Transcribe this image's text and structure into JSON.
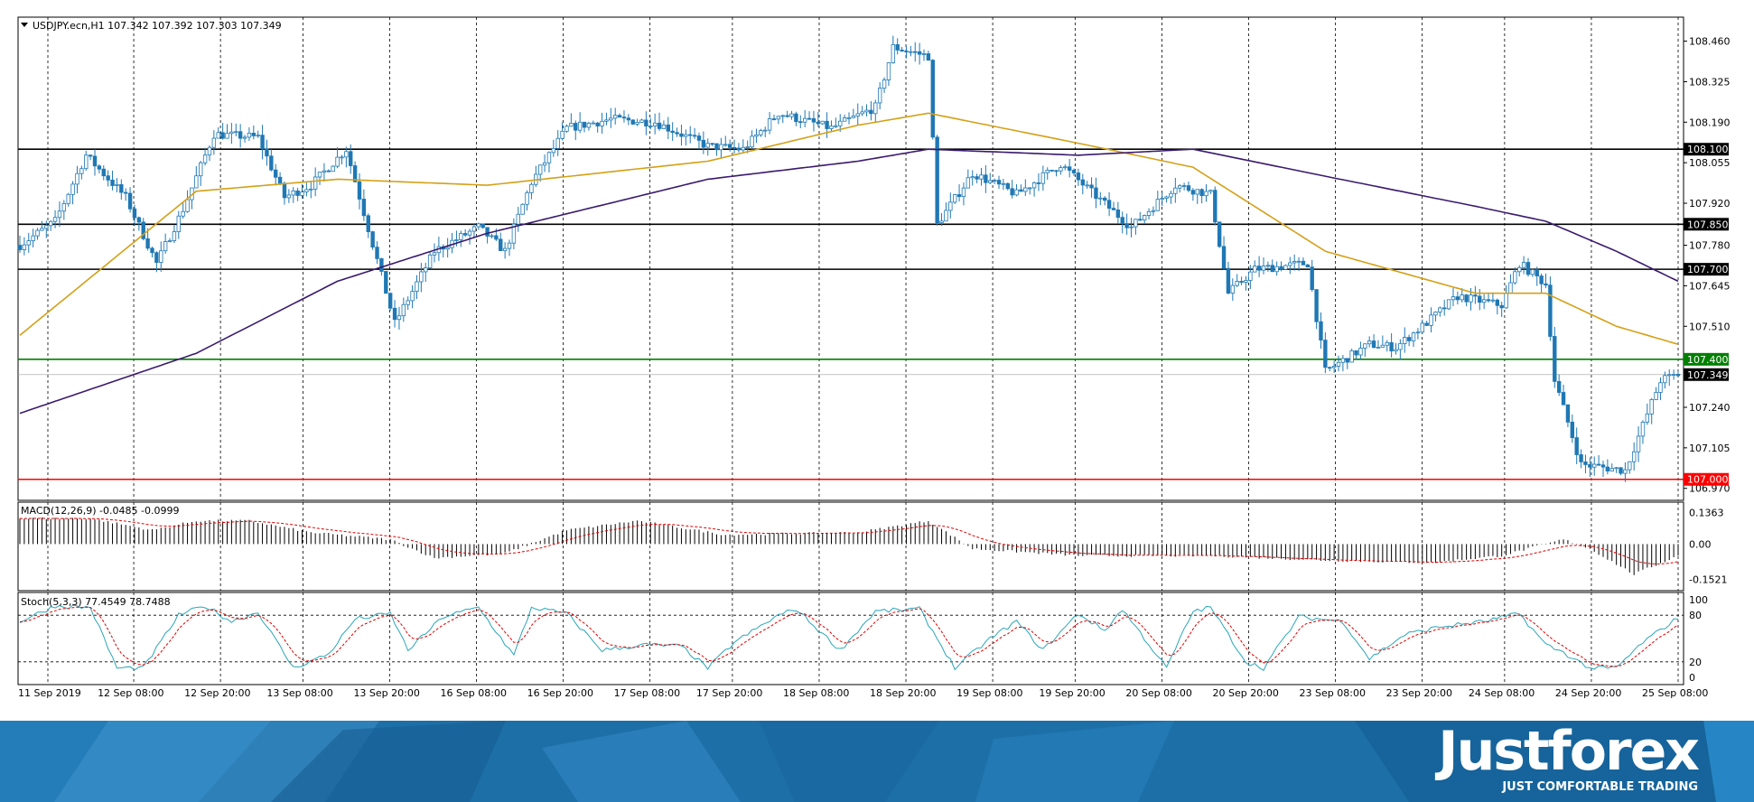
{
  "header": {
    "menu_icon": "triangle-down-icon",
    "text": "USDJPY.ecn,H1  107.342 107.392 107.303 107.349"
  },
  "chart_data": {
    "type": "candlestick",
    "symbol": "USDJPY.ecn",
    "timeframe": "H1",
    "ohlc": {
      "open": 107.342,
      "high": 107.392,
      "low": 107.303,
      "close": 107.349
    },
    "price_axis": {
      "ylim": [
        106.93,
        108.54
      ],
      "ticks": [
        "108.460",
        "108.325",
        "108.190",
        "108.055",
        "107.920",
        "107.780",
        "107.645",
        "107.510",
        "107.240",
        "107.105",
        "106.970"
      ]
    },
    "horizontal_levels": [
      {
        "value": 108.1,
        "label": "108.100",
        "color": "#000000"
      },
      {
        "value": 107.85,
        "label": "107.850",
        "color": "#000000"
      },
      {
        "value": 107.7,
        "label": "107.700",
        "color": "#000000"
      },
      {
        "value": 107.4,
        "label": "107.400",
        "color": "#008000"
      },
      {
        "value": 107.0,
        "label": "107.000",
        "color": "#ff0000"
      }
    ],
    "current_price": {
      "value": 107.349,
      "label": "107.349"
    },
    "x_labels": [
      "11 Sep 2019",
      "12 Sep 08:00",
      "12 Sep 20:00",
      "13 Sep 08:00",
      "13 Sep 20:00",
      "16 Sep 08:00",
      "16 Sep 20:00",
      "17 Sep 08:00",
      "17 Sep 20:00",
      "18 Sep 08:00",
      "18 Sep 20:00",
      "19 Sep 08:00",
      "19 Sep 20:00",
      "20 Sep 08:00",
      "20 Sep 20:00",
      "23 Sep 08:00",
      "23 Sep 20:00",
      "24 Sep 08:00",
      "24 Sep 20:00",
      "25 Sep 08:00"
    ],
    "anchors": [
      [
        0,
        107.78
      ],
      [
        8,
        107.86
      ],
      [
        15,
        108.08
      ],
      [
        24,
        107.94
      ],
      [
        31,
        107.72
      ],
      [
        37,
        107.9
      ],
      [
        44,
        108.15
      ],
      [
        54,
        108.14
      ],
      [
        60,
        107.94
      ],
      [
        66,
        107.98
      ],
      [
        74,
        108.1
      ],
      [
        85,
        107.52
      ],
      [
        94,
        107.76
      ],
      [
        104,
        107.84
      ],
      [
        110,
        107.76
      ],
      [
        116,
        107.99
      ],
      [
        124,
        108.17
      ],
      [
        134,
        108.2
      ],
      [
        144,
        108.19
      ],
      [
        156,
        108.11
      ],
      [
        164,
        108.1
      ],
      [
        172,
        108.22
      ],
      [
        184,
        108.17
      ],
      [
        194,
        108.24
      ],
      [
        198,
        108.44
      ],
      [
        206,
        108.41
      ],
      [
        208,
        107.85
      ],
      [
        216,
        108.02
      ],
      [
        226,
        107.95
      ],
      [
        236,
        108.05
      ],
      [
        242,
        107.97
      ],
      [
        252,
        107.84
      ],
      [
        262,
        107.98
      ],
      [
        270,
        107.95
      ],
      [
        274,
        107.62
      ],
      [
        280,
        107.7
      ],
      [
        292,
        107.72
      ],
      [
        296,
        107.36
      ],
      [
        306,
        107.45
      ],
      [
        312,
        107.44
      ],
      [
        318,
        107.51
      ],
      [
        326,
        107.61
      ],
      [
        336,
        107.58
      ],
      [
        340,
        107.72
      ],
      [
        346,
        107.65
      ],
      [
        348,
        107.33
      ],
      [
        354,
        107.05
      ],
      [
        364,
        107.03
      ],
      [
        372,
        107.33
      ],
      [
        376,
        107.35
      ]
    ],
    "ma_fast": [
      [
        0,
        107.48
      ],
      [
        40,
        107.96
      ],
      [
        72,
        108.0
      ],
      [
        106,
        107.98
      ],
      [
        156,
        108.06
      ],
      [
        190,
        108.18
      ],
      [
        206,
        108.22
      ],
      [
        240,
        108.12
      ],
      [
        266,
        108.04
      ],
      [
        296,
        107.76
      ],
      [
        330,
        107.62
      ],
      [
        346,
        107.62
      ],
      [
        362,
        107.51
      ],
      [
        376,
        107.45
      ]
    ],
    "ma_slow": [
      [
        0,
        107.22
      ],
      [
        40,
        107.42
      ],
      [
        72,
        107.66
      ],
      [
        106,
        107.82
      ],
      [
        156,
        108.0
      ],
      [
        190,
        108.06
      ],
      [
        206,
        108.1
      ],
      [
        240,
        108.08
      ],
      [
        266,
        108.1
      ],
      [
        296,
        108.01
      ],
      [
        330,
        107.91
      ],
      [
        346,
        107.86
      ],
      [
        362,
        107.76
      ],
      [
        376,
        107.66
      ]
    ],
    "colors": {
      "bull": "#1f78b4",
      "bear": "#1f78b4",
      "ma_fast": "#d4a017",
      "ma_slow": "#3a1a6e"
    },
    "macd": {
      "label": "MACD(12,26,9) -0.0485 -0.0999",
      "ticks": [
        "0.1363",
        "0.00",
        "-0.1521"
      ],
      "anchors": [
        [
          0,
          0.11
        ],
        [
          16,
          0.11
        ],
        [
          30,
          0.06
        ],
        [
          40,
          0.1
        ],
        [
          52,
          0.1
        ],
        [
          66,
          0.05
        ],
        [
          84,
          0.02
        ],
        [
          94,
          -0.06
        ],
        [
          110,
          -0.04
        ],
        [
          124,
          0.06
        ],
        [
          140,
          0.1
        ],
        [
          160,
          0.04
        ],
        [
          190,
          0.05
        ],
        [
          206,
          0.1
        ],
        [
          216,
          -0.02
        ],
        [
          240,
          -0.05
        ],
        [
          270,
          -0.05
        ],
        [
          296,
          -0.07
        ],
        [
          320,
          -0.08
        ],
        [
          336,
          -0.05
        ],
        [
          350,
          0.02
        ],
        [
          356,
          -0.02
        ],
        [
          366,
          -0.13
        ],
        [
          376,
          -0.05
        ]
      ]
    },
    "stoch": {
      "label": "Stoch(5,3,3) 77.4549 78.7488",
      "ticks": [
        "100",
        "80",
        "20",
        "0"
      ],
      "anchors": [
        [
          0,
          72
        ],
        [
          8,
          92
        ],
        [
          16,
          90
        ],
        [
          22,
          12
        ],
        [
          28,
          12
        ],
        [
          36,
          80
        ],
        [
          42,
          92
        ],
        [
          48,
          72
        ],
        [
          54,
          84
        ],
        [
          62,
          12
        ],
        [
          70,
          30
        ],
        [
          76,
          75
        ],
        [
          84,
          82
        ],
        [
          88,
          35
        ],
        [
          96,
          78
        ],
        [
          104,
          90
        ],
        [
          112,
          28
        ],
        [
          116,
          90
        ],
        [
          124,
          82
        ],
        [
          132,
          35
        ],
        [
          142,
          42
        ],
        [
          150,
          40
        ],
        [
          156,
          12
        ],
        [
          162,
          45
        ],
        [
          172,
          80
        ],
        [
          176,
          88
        ],
        [
          186,
          35
        ],
        [
          194,
          85
        ],
        [
          204,
          88
        ],
        [
          212,
          12
        ],
        [
          220,
          50
        ],
        [
          226,
          72
        ],
        [
          232,
          35
        ],
        [
          240,
          82
        ],
        [
          246,
          60
        ],
        [
          250,
          88
        ],
        [
          260,
          12
        ],
        [
          266,
          85
        ],
        [
          270,
          90
        ],
        [
          278,
          20
        ],
        [
          282,
          12
        ],
        [
          290,
          78
        ],
        [
          300,
          72
        ],
        [
          306,
          24
        ],
        [
          314,
          55
        ],
        [
          322,
          65
        ],
        [
          332,
          72
        ],
        [
          340,
          82
        ],
        [
          346,
          42
        ],
        [
          350,
          32
        ],
        [
          356,
          12
        ],
        [
          362,
          12
        ],
        [
          368,
          45
        ],
        [
          376,
          77
        ]
      ]
    }
  },
  "brand": {
    "name": "Justforex",
    "tagline": "JUST COMFORTABLE TRADING"
  }
}
